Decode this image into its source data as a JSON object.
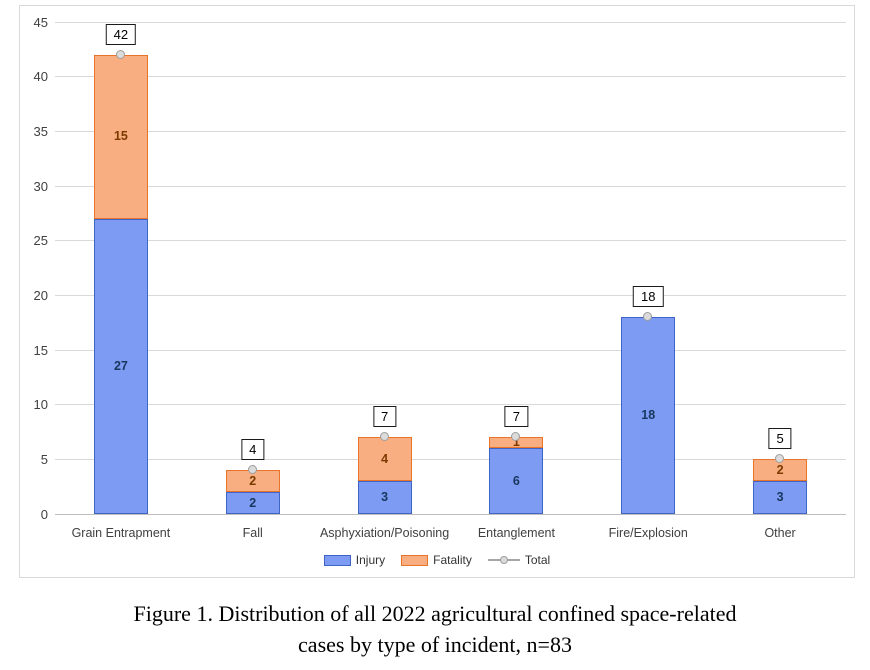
{
  "figure": {
    "caption_line1": "Figure 1. Distribution of all 2022 agricultural confined space-related",
    "caption_line2": "cases by type of incident, n=83"
  },
  "chart_data": {
    "type": "bar",
    "stacked": true,
    "title": "",
    "xlabel": "",
    "ylabel": "",
    "categories": [
      "Grain Entrapment",
      "Fall",
      "Asphyxiation/Poisoning",
      "Entanglement",
      "Fire/Explosion",
      "Other"
    ],
    "series": [
      {
        "name": "Injury",
        "values": [
          27,
          2,
          3,
          6,
          18,
          3
        ],
        "fill": "#7d9bf3",
        "border": "#3e64c6",
        "label_color": "#17375e"
      },
      {
        "name": "Fatality",
        "values": [
          15,
          2,
          4,
          1,
          0,
          2
        ],
        "fill": "#f9ae82",
        "border": "#e8732a",
        "label_color": "#7b3a00"
      }
    ],
    "totals": {
      "name": "Total",
      "values": [
        42,
        4,
        7,
        7,
        18,
        5
      ]
    },
    "ylim": [
      0,
      45
    ],
    "ytick_step": 5,
    "yticks": [
      "0",
      "5",
      "10",
      "15",
      "20",
      "25",
      "30",
      "35",
      "40",
      "45"
    ],
    "grid": true,
    "legend_position": "bottom",
    "colors": {
      "gridline": "#d9d9d9",
      "axis_line": "#bfbfbf",
      "tick_text": "#404040",
      "total_line": "#a6a6a6",
      "total_marker_fill": "#dbdbdb",
      "total_marker_border": "#9e9e9e",
      "total_box_border": "#1a1a1a"
    }
  }
}
